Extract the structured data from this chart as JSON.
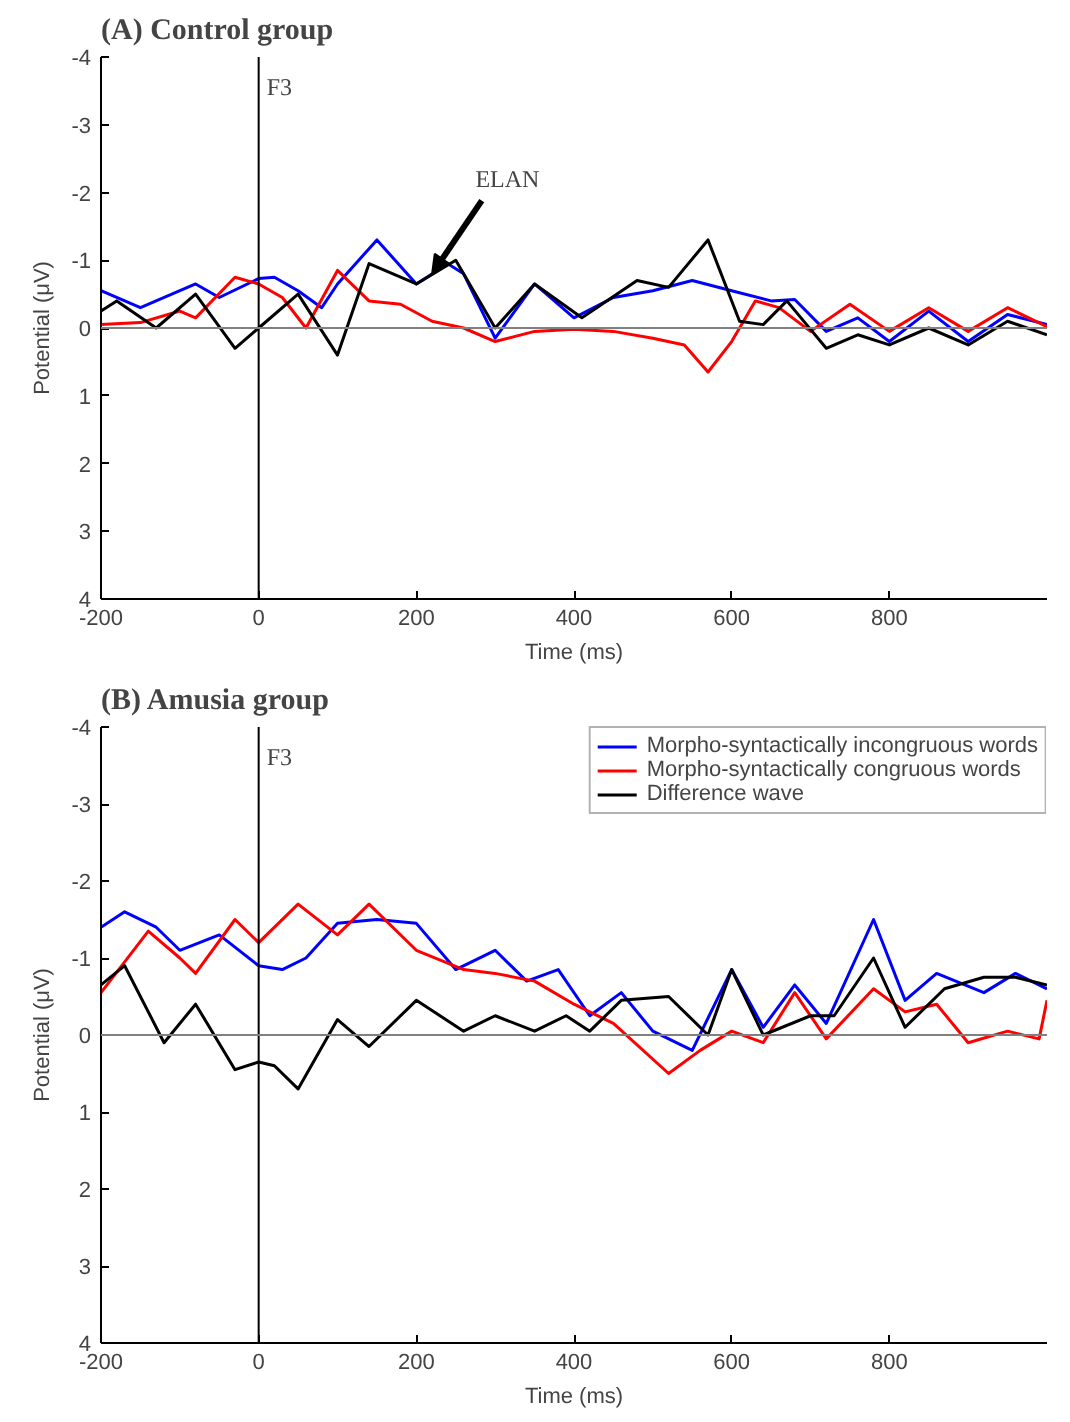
{
  "chart_data": [
    {
      "type": "line",
      "title": "(A) Control group",
      "xlabel": "Time (ms)",
      "ylabel": "Potential (μV)",
      "xlim": [
        -200,
        1000
      ],
      "ylim": [
        4,
        -4
      ],
      "xticks": [
        -200,
        0,
        200,
        400,
        600,
        800
      ],
      "yticks": [
        -4,
        -3,
        -2,
        -1,
        0,
        1,
        2,
        3,
        4
      ],
      "grid": false,
      "legend": false,
      "marker": "none",
      "line_style": "solid",
      "ref_lines": [
        {
          "axis": "x",
          "value": 0,
          "label": "F3",
          "color": "#000000"
        },
        {
          "axis": "y",
          "value": 0,
          "label": null,
          "color": "#808080"
        }
      ],
      "annotations": [
        {
          "text": "ELAN",
          "x": 220,
          "y": -0.8
        }
      ],
      "series": [
        {
          "color": "#0000ff",
          "x": [
            -200,
            -150,
            -80,
            -50,
            0,
            20,
            50,
            80,
            100,
            150,
            200,
            240,
            260,
            300,
            350,
            400,
            450,
            500,
            550,
            600,
            650,
            680,
            720,
            760,
            800,
            850,
            900,
            950,
            1000
          ],
          "values": [
            -0.55,
            -0.3,
            -0.65,
            -0.45,
            -0.73,
            -0.75,
            -0.55,
            -0.3,
            -0.65,
            -1.3,
            -0.65,
            -0.95,
            -0.8,
            0.15,
            -0.65,
            -0.15,
            -0.45,
            -0.55,
            -0.7,
            -0.55,
            -0.4,
            -0.42,
            0.05,
            -0.15,
            0.2,
            -0.25,
            0.2,
            -0.2,
            -0.05
          ]
        },
        {
          "color": "#ff0000",
          "x": [
            -200,
            -150,
            -100,
            -80,
            -30,
            0,
            30,
            60,
            100,
            140,
            180,
            220,
            260,
            300,
            350,
            400,
            450,
            500,
            540,
            570,
            600,
            630,
            660,
            700,
            750,
            800,
            850,
            900,
            950,
            1000
          ],
          "values": [
            -0.05,
            -0.08,
            -0.25,
            -0.15,
            -0.75,
            -0.65,
            -0.45,
            0,
            -0.85,
            -0.4,
            -0.35,
            -0.1,
            0,
            0.2,
            0.05,
            0.02,
            0.05,
            0.15,
            0.25,
            0.65,
            0.2,
            -0.4,
            -0.3,
            0.05,
            -0.35,
            0.05,
            -0.3,
            0.05,
            -0.3,
            -0.02
          ]
        },
        {
          "color": "#000000",
          "x": [
            -200,
            -180,
            -130,
            -80,
            -30,
            0,
            50,
            100,
            140,
            200,
            250,
            300,
            350,
            410,
            480,
            520,
            570,
            610,
            640,
            670,
            720,
            760,
            800,
            850,
            900,
            950,
            1000
          ],
          "values": [
            -0.25,
            -0.4,
            0,
            -0.5,
            0.3,
            0,
            -0.5,
            0.4,
            -0.95,
            -0.65,
            -1.0,
            0,
            -0.65,
            -0.15,
            -0.7,
            -0.6,
            -1.3,
            -0.1,
            -0.05,
            -0.4,
            0.3,
            0.1,
            0.25,
            0,
            0.25,
            -0.1,
            0.1
          ]
        }
      ]
    },
    {
      "type": "line",
      "title": "(B) Amusia group",
      "xlabel": "Time (ms)",
      "ylabel": "Potential (μV)",
      "xlim": [
        -200,
        1000
      ],
      "ylim": [
        4,
        -4
      ],
      "xticks": [
        -200,
        0,
        200,
        400,
        600,
        800
      ],
      "yticks": [
        -4,
        -3,
        -2,
        -1,
        0,
        1,
        2,
        3,
        4
      ],
      "grid": false,
      "legend": "top right",
      "marker": "none",
      "line_style": "solid",
      "ref_lines": [
        {
          "axis": "x",
          "value": 0,
          "label": "F3",
          "color": "#000000"
        },
        {
          "axis": "y",
          "value": 0,
          "label": null,
          "color": "#808080"
        }
      ],
      "series": [
        {
          "name": "Morpho-syntactically incongruous words",
          "color": "#0000ff",
          "x": [
            -200,
            -170,
            -130,
            -100,
            -50,
            0,
            30,
            60,
            100,
            150,
            200,
            250,
            300,
            340,
            380,
            420,
            460,
            500,
            550,
            600,
            640,
            680,
            720,
            780,
            820,
            860,
            920,
            960,
            1000
          ],
          "values": [
            -1.4,
            -1.6,
            -1.4,
            -1.1,
            -1.3,
            -0.9,
            -0.85,
            -1.0,
            -1.45,
            -1.5,
            -1.45,
            -0.85,
            -1.1,
            -0.7,
            -0.85,
            -0.25,
            -0.55,
            -0.05,
            0.2,
            -0.85,
            -0.1,
            -0.65,
            -0.15,
            -1.5,
            -0.45,
            -0.8,
            -0.55,
            -0.8,
            -0.6
          ]
        },
        {
          "name": "Morpho-syntactically congruous words",
          "color": "#ff0000",
          "x": [
            -200,
            -140,
            -100,
            -80,
            -30,
            0,
            50,
            100,
            140,
            200,
            260,
            300,
            350,
            400,
            450,
            520,
            560,
            600,
            640,
            680,
            720,
            780,
            820,
            860,
            900,
            950,
            990,
            1000
          ],
          "values": [
            -0.55,
            -1.35,
            -1.0,
            -0.8,
            -1.5,
            -1.2,
            -1.7,
            -1.3,
            -1.7,
            -1.1,
            -0.85,
            -0.8,
            -0.7,
            -0.4,
            -0.15,
            0.5,
            0.2,
            -0.05,
            0.1,
            -0.55,
            0.05,
            -0.6,
            -0.3,
            -0.4,
            0.1,
            -0.05,
            0.05,
            -0.45
          ]
        },
        {
          "name": "Difference wave",
          "color": "#000000",
          "x": [
            -200,
            -170,
            -120,
            -80,
            -30,
            0,
            20,
            50,
            100,
            140,
            200,
            260,
            300,
            350,
            390,
            420,
            460,
            520,
            570,
            600,
            640,
            700,
            730,
            780,
            820,
            870,
            920,
            960,
            1000
          ],
          "values": [
            -0.65,
            -0.9,
            0.1,
            -0.4,
            0.45,
            0.35,
            0.4,
            0.7,
            -0.2,
            0.15,
            -0.45,
            -0.05,
            -0.25,
            -0.05,
            -0.25,
            -0.05,
            -0.45,
            -0.5,
            0,
            -0.85,
            0,
            -0.25,
            -0.25,
            -1.0,
            -0.1,
            -0.6,
            -0.75,
            -0.75,
            -0.65
          ]
        }
      ]
    }
  ]
}
